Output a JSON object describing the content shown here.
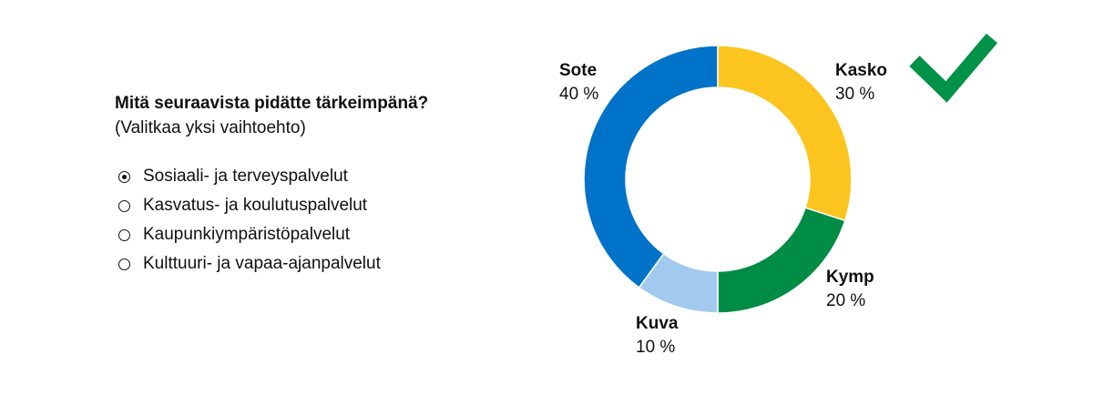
{
  "poll": {
    "question": "Mitä seuraavista pidätte tärkeimpänä?",
    "hint": "(Valitkaa yksi vaihtoehto)",
    "options": [
      {
        "label": "Sosiaali- ja terveyspalvelut",
        "selected": true
      },
      {
        "label": "Kasvatus- ja koulutuspalvelut",
        "selected": false
      },
      {
        "label": "Kaupunkiympäristöpalvelut",
        "selected": false
      },
      {
        "label": "Kulttuuri- ja vapaa-ajanpalvelut",
        "selected": false
      }
    ]
  },
  "chart_data": {
    "type": "pie",
    "donut": true,
    "title": "",
    "slices": [
      {
        "name": "Kasko",
        "value": 30,
        "label": "30 %",
        "color": "#fcc41f"
      },
      {
        "name": "Kymp",
        "value": 20,
        "label": "20 %",
        "color": "#008c45"
      },
      {
        "name": "Kuva",
        "value": 10,
        "label": "10 %",
        "color": "#a2caee"
      },
      {
        "name": "Sote",
        "value": 40,
        "label": "40 %",
        "color": "#0073c8"
      }
    ],
    "marked_slice": "Kasko",
    "marker": {
      "icon": "checkmark-icon",
      "color": "#009246"
    }
  }
}
